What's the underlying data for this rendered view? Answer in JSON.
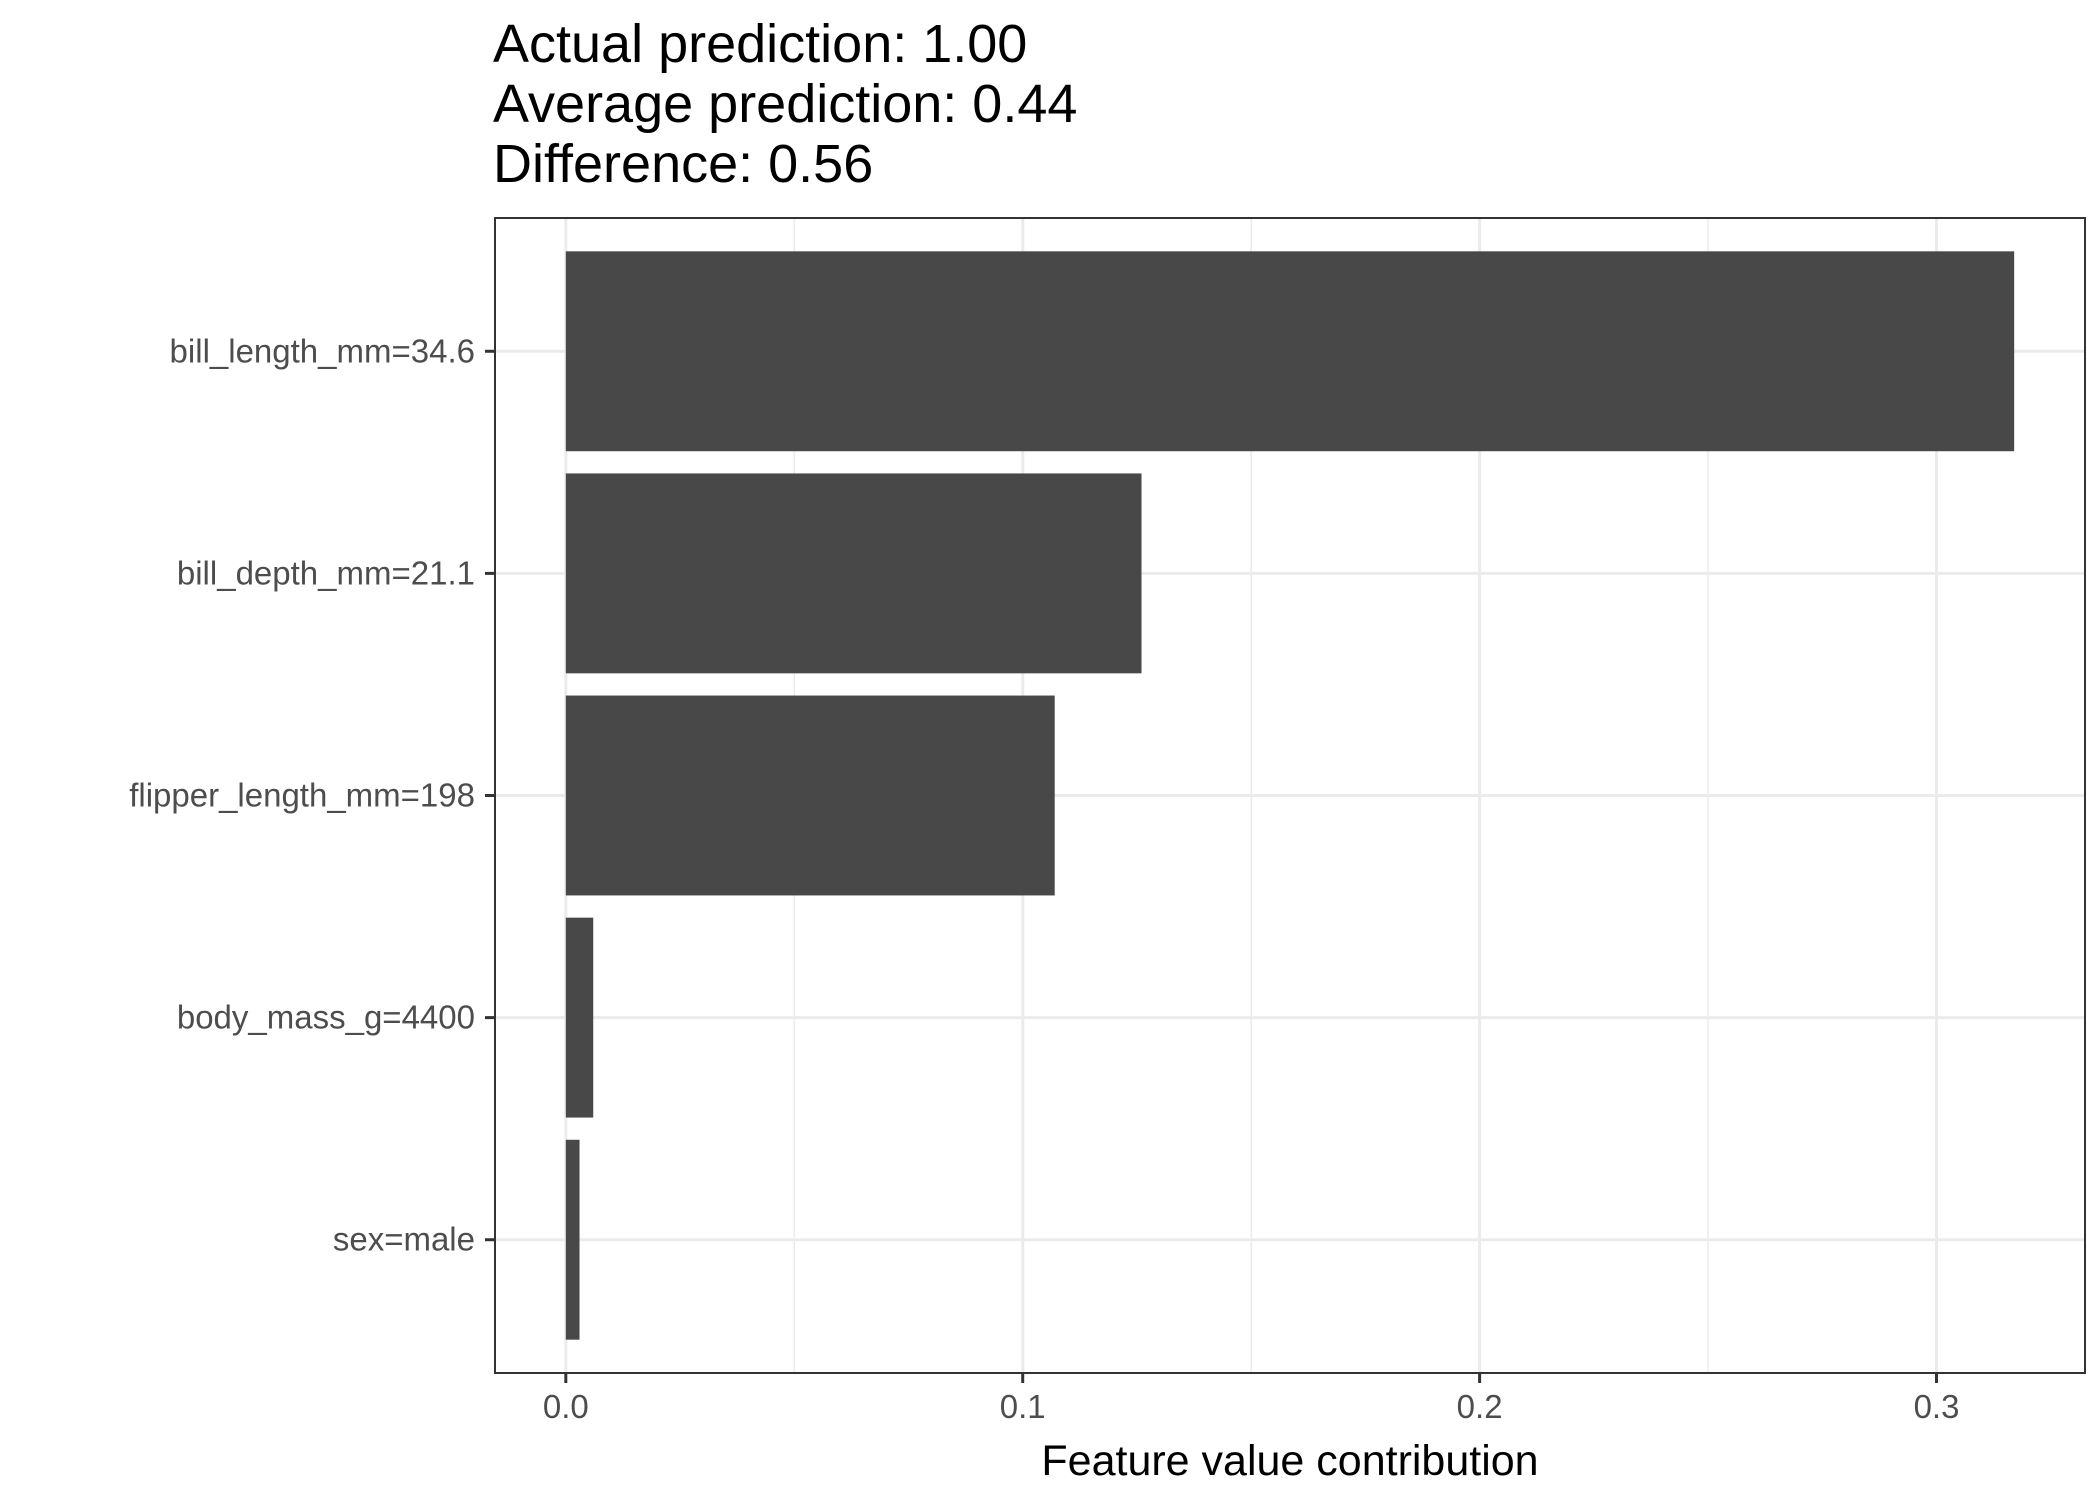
{
  "chart_data": {
    "type": "bar",
    "orientation": "horizontal",
    "title_lines": [
      "Actual prediction: 1.00",
      "Average prediction: 0.44",
      "Difference: 0.56"
    ],
    "categories": [
      "bill_length_mm=34.6",
      "bill_depth_mm=21.1",
      "flipper_length_mm=198",
      "body_mass_g=4400",
      "sex=male"
    ],
    "values": [
      0.317,
      0.126,
      0.107,
      0.006,
      0.003
    ],
    "xlabel": "Feature value contribution",
    "ylabel": "",
    "xlim": [
      -0.0155,
      0.3325
    ],
    "xticks": [
      0.0,
      0.1,
      0.2,
      0.3
    ],
    "xtick_labels": [
      "0.0",
      "0.1",
      "0.2",
      "0.3"
    ],
    "grid": true,
    "bar_color": "#484848",
    "grid_color": "#ebebeb",
    "frame_color": "#333333"
  }
}
